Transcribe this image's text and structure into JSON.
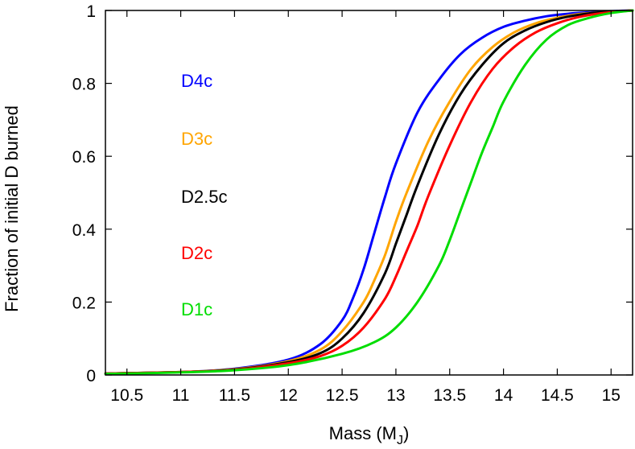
{
  "chart_data": {
    "type": "line",
    "title": "",
    "xlabel": "Mass (M",
    "xlabel_sub": "J",
    "xlabel_close": ")",
    "ylabel": "Fraction of initial D burned",
    "xlim": [
      10.3,
      15.2
    ],
    "ylim": [
      0,
      1
    ],
    "xticks": [
      "10.5",
      "11",
      "11.5",
      "12",
      "12.5",
      "13",
      "13.5",
      "14",
      "14.5",
      "15"
    ],
    "yticks": [
      "0",
      "0.2",
      "0.4",
      "0.6",
      "0.8",
      "1"
    ],
    "grid": false,
    "legend": "inline-left",
    "series": [
      {
        "name": "D4c",
        "color": "#0000ff",
        "x": [
          10.3,
          11.0,
          11.5,
          12.0,
          12.3,
          12.5,
          12.6,
          12.7,
          12.8,
          12.9,
          13.0,
          13.2,
          13.4,
          13.6,
          13.8,
          14.0,
          14.2,
          14.4,
          14.6,
          14.8,
          15.0,
          15.2
        ],
        "y": [
          0.004,
          0.008,
          0.017,
          0.042,
          0.085,
          0.15,
          0.21,
          0.29,
          0.39,
          0.49,
          0.58,
          0.72,
          0.81,
          0.88,
          0.925,
          0.955,
          0.972,
          0.984,
          0.991,
          0.995,
          0.998,
          1.0
        ]
      },
      {
        "name": "D3c",
        "color": "#ffa500",
        "x": [
          10.3,
          11.0,
          11.5,
          12.0,
          12.3,
          12.5,
          12.7,
          12.8,
          12.9,
          13.0,
          13.1,
          13.3,
          13.5,
          13.7,
          13.9,
          14.1,
          14.3,
          14.5,
          14.7,
          14.9,
          15.2
        ],
        "y": [
          0.004,
          0.008,
          0.016,
          0.038,
          0.07,
          0.12,
          0.2,
          0.26,
          0.33,
          0.42,
          0.5,
          0.64,
          0.75,
          0.84,
          0.9,
          0.94,
          0.965,
          0.98,
          0.99,
          0.995,
          1.0
        ]
      },
      {
        "name": "D2.5c",
        "color": "#000000",
        "x": [
          10.3,
          11.0,
          11.5,
          12.0,
          12.3,
          12.5,
          12.7,
          12.9,
          13.0,
          13.1,
          13.2,
          13.4,
          13.6,
          13.8,
          14.0,
          14.2,
          14.4,
          14.6,
          14.8,
          15.0,
          15.2
        ],
        "y": [
          0.004,
          0.008,
          0.015,
          0.035,
          0.06,
          0.1,
          0.17,
          0.28,
          0.36,
          0.44,
          0.52,
          0.66,
          0.77,
          0.85,
          0.91,
          0.945,
          0.968,
          0.983,
          0.992,
          0.997,
          1.0
        ]
      },
      {
        "name": "D2c",
        "color": "#ff0000",
        "x": [
          10.3,
          11.0,
          11.5,
          12.0,
          12.3,
          12.5,
          12.7,
          12.9,
          13.0,
          13.1,
          13.2,
          13.3,
          13.5,
          13.7,
          13.9,
          14.1,
          14.3,
          14.5,
          14.7,
          14.9,
          15.2
        ],
        "y": [
          0.004,
          0.008,
          0.014,
          0.032,
          0.052,
          0.08,
          0.13,
          0.21,
          0.27,
          0.34,
          0.41,
          0.49,
          0.63,
          0.75,
          0.84,
          0.9,
          0.94,
          0.965,
          0.982,
          0.992,
          1.0
        ]
      },
      {
        "name": "D1c",
        "color": "#00dd00",
        "x": [
          10.3,
          11.0,
          11.5,
          12.0,
          12.5,
          12.8,
          13.0,
          13.2,
          13.4,
          13.5,
          13.6,
          13.7,
          13.8,
          13.9,
          14.0,
          14.2,
          14.4,
          14.6,
          14.8,
          15.0,
          15.2
        ],
        "y": [
          0.003,
          0.007,
          0.013,
          0.027,
          0.058,
          0.09,
          0.13,
          0.2,
          0.3,
          0.37,
          0.45,
          0.53,
          0.61,
          0.68,
          0.75,
          0.85,
          0.92,
          0.96,
          0.98,
          0.993,
          1.0
        ]
      }
    ]
  }
}
